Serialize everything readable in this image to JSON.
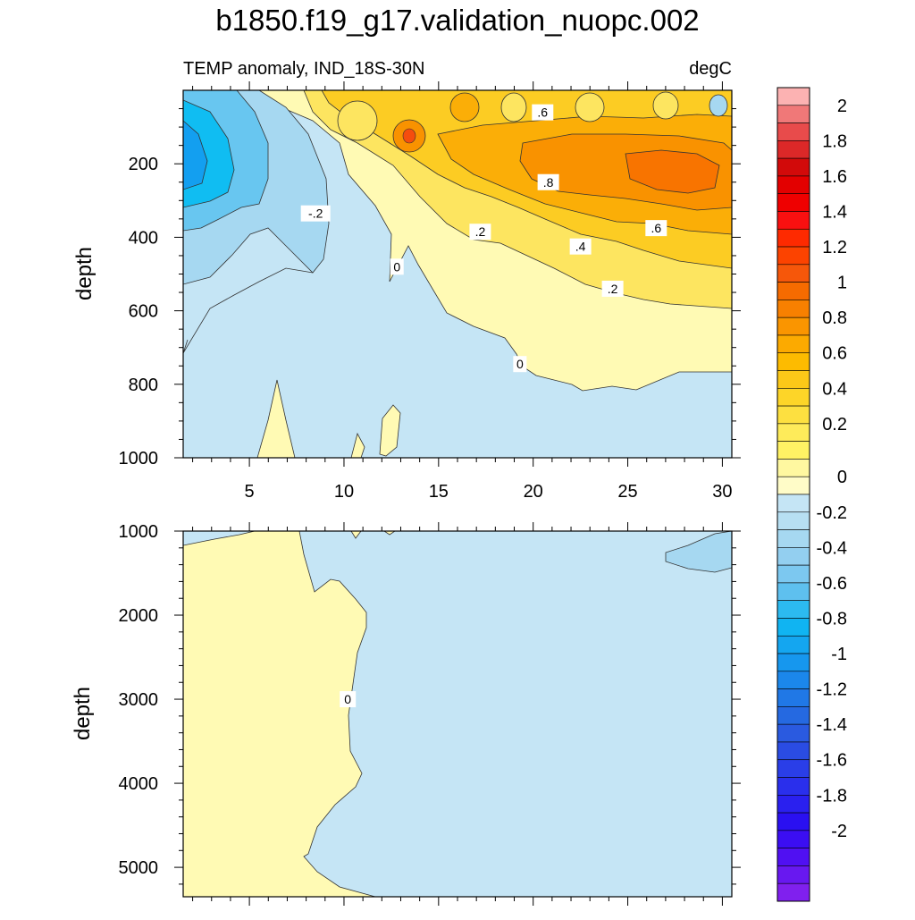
{
  "figure": {
    "title": "b1850.f19_g17.validation_nuopc.002",
    "left_string": "TEMP anomaly, IND_18S-30N",
    "right_string": "degC"
  },
  "colors": {
    "pos_0": "#fffab4",
    "pos_02": "#fde560",
    "pos_04": "#fccc23",
    "pos_06": "#fbae07",
    "pos_08": "#f99200",
    "pos_1": "#f87400",
    "pos_12": "#f54d0e",
    "neg_0": "#c5e5f5",
    "neg_02": "#a6d8f1",
    "neg_04": "#68c6f0",
    "neg_06": "#10bdf2",
    "neg_08": "#139ff0"
  },
  "chart_data": [
    {
      "type": "contour",
      "panel": "upper",
      "ylabel": "depth",
      "xlim": [
        1.5,
        30.5
      ],
      "ylim": [
        1000,
        0
      ],
      "x_ticks": [
        5,
        10,
        15,
        20,
        25,
        30
      ],
      "x_tick_labels": [
        "5",
        "10",
        "15",
        "20",
        "25",
        "30"
      ],
      "y_ticks": [
        200,
        400,
        600,
        800,
        1000
      ],
      "y_tick_labels": [
        "200",
        "400",
        "600",
        "800",
        "1000"
      ],
      "contour_labels": [
        {
          "text": ".6",
          "x": 20.5,
          "y": 60
        },
        {
          "text": ".8",
          "x": 20.8,
          "y": 250
        },
        {
          "text": "-.2",
          "x": 8.5,
          "y": 335
        },
        {
          "text": ".2",
          "x": 17.2,
          "y": 385
        },
        {
          "text": ".6",
          "x": 26.5,
          "y": 375
        },
        {
          "text": ".4",
          "x": 22.5,
          "y": 425
        },
        {
          "text": "0",
          "x": 12.8,
          "y": 480
        },
        {
          "text": ".2",
          "x": 24.2,
          "y": 540
        },
        {
          "text": "0",
          "x": 19.3,
          "y": 745
        }
      ]
    },
    {
      "type": "contour",
      "panel": "lower",
      "ylabel": "depth",
      "xlim": [
        1.5,
        30.5
      ],
      "ylim": [
        5350,
        1000
      ],
      "y_ticks": [
        1000,
        2000,
        3000,
        4000,
        5000
      ],
      "y_tick_labels": [
        "1000",
        "2000",
        "3000",
        "4000",
        "5000"
      ],
      "contour_labels": [
        {
          "text": "0",
          "x": 10.2,
          "y": 3000
        }
      ]
    },
    {
      "type": "colorbar",
      "levels": [
        -2,
        -1.8,
        -1.6,
        -1.4,
        -1.2,
        -1,
        -0.8,
        -0.6,
        -0.4,
        -0.2,
        0,
        0.2,
        0.4,
        0.6,
        0.8,
        1,
        1.2,
        1.4,
        1.6,
        1.8,
        2
      ],
      "labels": [
        "2",
        "1.8",
        "1.6",
        "1.4",
        "1.2",
        "1",
        "0.8",
        "0.6",
        "0.4",
        "0.2",
        "0",
        "-0.2",
        "-0.4",
        "-0.6",
        "-0.8",
        "-1",
        "-1.2",
        "-1.4",
        "-1.6",
        "-1.8",
        "-2"
      ],
      "box_colors": [
        "#fcb2b2",
        "#f07878",
        "#e84b4b",
        "#dc2828",
        "#d20a0a",
        "#e30000",
        "#ef0000",
        "#f91010",
        "#fe2a00",
        "#fc4300",
        "#f6570a",
        "#f66b00",
        "#f88000",
        "#fa9500",
        "#fcaa00",
        "#fdbb00",
        "#fcc818",
        "#fdd528",
        "#fde040",
        "#feeb5a",
        "#fff264",
        "#fff8a0",
        "#fffcc8",
        "#c5e5f5",
        "#b7dff2",
        "#a6d8f1",
        "#93cff0",
        "#7cc8f0",
        "#5ec0ef",
        "#2cbaf0",
        "#10b4f2",
        "#14a6f0",
        "#1697ee",
        "#1b87eb",
        "#2078e6",
        "#2569e1",
        "#2a5ae0",
        "#2a4ce3",
        "#2a3ee8",
        "#2a2fec",
        "#2a20ef",
        "#2a10f1",
        "#3b0ef2",
        "#5010f2",
        "#6818f0",
        "#8020ee"
      ]
    }
  ]
}
